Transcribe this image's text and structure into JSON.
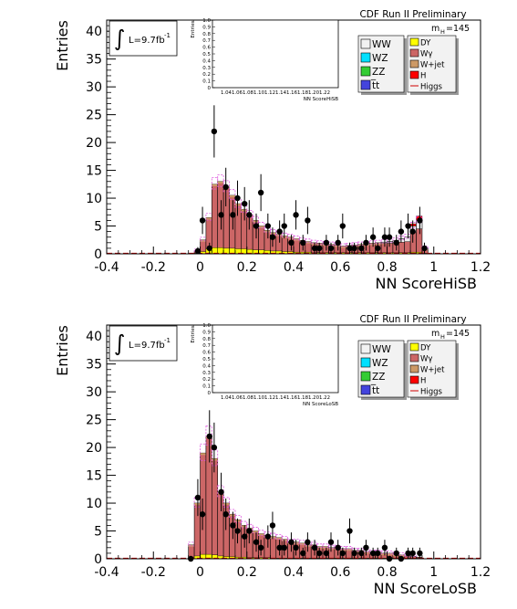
{
  "common": {
    "ylabel": "Entries",
    "lumi_integral": "∫",
    "lumi_text": "L=9.7fb",
    "lumi_sup": "-1",
    "cdf_label": "CDF Run II Preliminary",
    "mass_label": "m",
    "mass_sub": "H",
    "mass_value": "=145",
    "inset_ylabel": "Entries",
    "inset_yticks": [
      "0",
      "0.1",
      "0.2",
      "0.3",
      "0.4",
      "0.5",
      "0.6",
      "0.7",
      "0.8",
      "0.9",
      "1.0"
    ],
    "inset_xticks": "1.041.061.081.101.121.141.161.181.201.22",
    "legend_left": [
      "WW",
      "WZ",
      "ZZ",
      "t̅t"
    ],
    "legend_right": [
      "DY",
      "Wγ",
      "W+jet",
      "H",
      "Higgs"
    ],
    "xticks": [
      "-0.4",
      "-0.2",
      "0",
      "0.2",
      "0.4",
      "0.6",
      "0.8",
      "1",
      "1.2"
    ],
    "yticks": [
      "0",
      "5",
      "10",
      "15",
      "20",
      "25",
      "30",
      "35",
      "40"
    ],
    "colors": {
      "WW": "#f2f2f2",
      "WZ": "#00e0ff",
      "ZZ": "#33cc33",
      "tt": "#4444dd",
      "DY": "#ffff00",
      "Wg": "#cc6666",
      "Wjet": "#cc9966",
      "H": "#ff0000",
      "Higgs": "#ff66ff",
      "band": "#dd55dd",
      "axis_red": "#d00000"
    }
  },
  "chart_data": [
    {
      "type": "bar",
      "xlabel": "NN ScoreHiSB",
      "inset_xlabel": "NN ScoreHiSB",
      "xlim": [
        -0.4,
        1.2
      ],
      "ylim": [
        0,
        42
      ],
      "bin_edges": [
        -0.025,
        0,
        0.025,
        0.05,
        0.075,
        0.1,
        0.125,
        0.15,
        0.175,
        0.2,
        0.225,
        0.25,
        0.275,
        0.3,
        0.325,
        0.35,
        0.375,
        0.4,
        0.425,
        0.45,
        0.475,
        0.5,
        0.525,
        0.55,
        0.575,
        0.6,
        0.625,
        0.65,
        0.675,
        0.7,
        0.725,
        0.75,
        0.775,
        0.8,
        0.825,
        0.85,
        0.875,
        0.9,
        0.925,
        0.95,
        0.975
      ],
      "stack_total": [
        0.5,
        2.5,
        6.5,
        12.5,
        13,
        12,
        10.5,
        9,
        8,
        7,
        6,
        5,
        4.2,
        3.8,
        3.5,
        3.2,
        3,
        2.7,
        2.4,
        2.2,
        2,
        1.9,
        1.8,
        1.7,
        1.6,
        1.4,
        1.5,
        1.6,
        1.7,
        1.8,
        1.9,
        2,
        2.1,
        2.2,
        2.4,
        2.7,
        3,
        5,
        6,
        1
      ],
      "dy_part": [
        0.1,
        0.4,
        0.9,
        1.1,
        1.1,
        1,
        1,
        0.9,
        0.9,
        0.8,
        0.7,
        0.7,
        0.6,
        0.5,
        0.5,
        0.4,
        0.4,
        0.3,
        0.3,
        0.3,
        0.2,
        0.2,
        0.2,
        0.2,
        0.2,
        0.2,
        0.2,
        0.2,
        0.2,
        0.2,
        0.2,
        0.2,
        0.2,
        0.2,
        0.2,
        0.2,
        0.2,
        0.3,
        0.3,
        0.1
      ],
      "ww_part": [
        0,
        0,
        0,
        0,
        0,
        0,
        0,
        0,
        0,
        0,
        0,
        0,
        0,
        0,
        0,
        0,
        0,
        0,
        0,
        0,
        0,
        0,
        0,
        0,
        0,
        0,
        0,
        0,
        0,
        0,
        0,
        0,
        0.2,
        0.3,
        0.4,
        0.6,
        0.8,
        1.2,
        1.5,
        0.2
      ],
      "higgs_part": [
        0,
        0,
        0,
        0,
        0,
        0,
        0,
        0,
        0,
        0,
        0,
        0,
        0,
        0,
        0,
        0,
        0,
        0,
        0,
        0,
        0,
        0,
        0,
        0,
        0,
        0,
        0,
        0,
        0,
        0,
        0,
        0,
        0,
        0,
        0,
        0,
        0,
        0.4,
        0.8,
        0
      ],
      "data_points": [
        {
          "x": -0.01,
          "y": 0.5
        },
        {
          "x": 0.01,
          "y": 6
        },
        {
          "x": 0.04,
          "y": 1
        },
        {
          "x": 0.06,
          "y": 22
        },
        {
          "x": 0.09,
          "y": 7
        },
        {
          "x": 0.11,
          "y": 12
        },
        {
          "x": 0.14,
          "y": 7
        },
        {
          "x": 0.16,
          "y": 10
        },
        {
          "x": 0.19,
          "y": 9
        },
        {
          "x": 0.21,
          "y": 7
        },
        {
          "x": 0.24,
          "y": 5
        },
        {
          "x": 0.26,
          "y": 11
        },
        {
          "x": 0.29,
          "y": 5
        },
        {
          "x": 0.31,
          "y": 3
        },
        {
          "x": 0.34,
          "y": 4
        },
        {
          "x": 0.36,
          "y": 5
        },
        {
          "x": 0.39,
          "y": 2
        },
        {
          "x": 0.41,
          "y": 7
        },
        {
          "x": 0.44,
          "y": 2
        },
        {
          "x": 0.46,
          "y": 6
        },
        {
          "x": 0.49,
          "y": 1
        },
        {
          "x": 0.51,
          "y": 1
        },
        {
          "x": 0.54,
          "y": 2
        },
        {
          "x": 0.56,
          "y": 1
        },
        {
          "x": 0.59,
          "y": 2
        },
        {
          "x": 0.61,
          "y": 5
        },
        {
          "x": 0.64,
          "y": 1
        },
        {
          "x": 0.66,
          "y": 1
        },
        {
          "x": 0.69,
          "y": 1
        },
        {
          "x": 0.71,
          "y": 2
        },
        {
          "x": 0.74,
          "y": 3
        },
        {
          "x": 0.76,
          "y": 1
        },
        {
          "x": 0.79,
          "y": 3
        },
        {
          "x": 0.81,
          "y": 3
        },
        {
          "x": 0.84,
          "y": 2
        },
        {
          "x": 0.86,
          "y": 4
        },
        {
          "x": 0.89,
          "y": 5
        },
        {
          "x": 0.91,
          "y": 4
        },
        {
          "x": 0.94,
          "y": 6
        },
        {
          "x": 0.96,
          "y": 1
        }
      ]
    },
    {
      "type": "bar",
      "xlabel": "NN ScoreLoSB",
      "inset_xlabel": "NN ScoreLoSB",
      "xlim": [
        -0.4,
        1.2
      ],
      "ylim": [
        0,
        42
      ],
      "bin_edges": [
        -0.05,
        -0.025,
        0,
        0.025,
        0.05,
        0.075,
        0.1,
        0.125,
        0.15,
        0.175,
        0.2,
        0.225,
        0.25,
        0.275,
        0.3,
        0.325,
        0.35,
        0.375,
        0.4,
        0.425,
        0.45,
        0.475,
        0.5,
        0.525,
        0.55,
        0.575,
        0.6,
        0.625,
        0.65,
        0.675,
        0.7,
        0.725,
        0.75,
        0.775,
        0.8,
        0.825,
        0.85,
        0.875,
        0.9,
        0.925,
        0.95
      ],
      "stack_total": [
        2.5,
        10,
        19,
        22,
        18,
        12,
        10,
        8,
        7,
        6,
        5.5,
        5,
        4.5,
        4.2,
        4,
        3.8,
        3.5,
        3,
        3,
        2.8,
        2.5,
        2.5,
        2.2,
        2.2,
        2,
        2,
        1.8,
        1.8,
        1.5,
        1.5,
        1.3,
        1.2,
        1.2,
        1,
        1,
        0.8,
        0.7,
        0.5,
        0.4,
        0.3
      ],
      "dy_part": [
        0.2,
        0.5,
        0.8,
        0.8,
        0.7,
        0.5,
        0.4,
        0.4,
        0.3,
        0.3,
        0.2,
        0.2,
        0.2,
        0.2,
        0.1,
        0.1,
        0.1,
        0.1,
        0.1,
        0.1,
        0.1,
        0.1,
        0.1,
        0.1,
        0.1,
        0.1,
        0.1,
        0.1,
        0.1,
        0.1,
        0.1,
        0.1,
        0.1,
        0.1,
        0.1,
        0.1,
        0.1,
        0.1,
        0.1,
        0.1
      ],
      "ww_part": [
        0,
        0,
        0,
        0,
        0,
        0,
        0,
        0,
        0,
        0,
        0,
        0,
        0,
        0,
        0,
        0,
        0,
        0,
        0,
        0,
        0,
        0,
        0,
        0,
        0,
        0,
        0,
        0,
        0,
        0,
        0,
        0,
        0,
        0,
        0,
        0,
        0,
        0,
        0,
        0
      ],
      "higgs_part": [
        0,
        0,
        0,
        0,
        0,
        0,
        0,
        0,
        0,
        0,
        0,
        0,
        0,
        0,
        0,
        0,
        0,
        0,
        0,
        0,
        0,
        0,
        0,
        0,
        0,
        0,
        0,
        0,
        0,
        0,
        0,
        0,
        0,
        0,
        0,
        0,
        0,
        0,
        0,
        0
      ],
      "data_points": [
        {
          "x": -0.04,
          "y": 0
        },
        {
          "x": -0.01,
          "y": 11
        },
        {
          "x": 0.01,
          "y": 8
        },
        {
          "x": 0.04,
          "y": 22
        },
        {
          "x": 0.06,
          "y": 20
        },
        {
          "x": 0.09,
          "y": 12
        },
        {
          "x": 0.11,
          "y": 8
        },
        {
          "x": 0.14,
          "y": 6
        },
        {
          "x": 0.16,
          "y": 5
        },
        {
          "x": 0.19,
          "y": 4
        },
        {
          "x": 0.21,
          "y": 5
        },
        {
          "x": 0.24,
          "y": 3
        },
        {
          "x": 0.26,
          "y": 2
        },
        {
          "x": 0.29,
          "y": 4
        },
        {
          "x": 0.31,
          "y": 6
        },
        {
          "x": 0.34,
          "y": 2
        },
        {
          "x": 0.36,
          "y": 2
        },
        {
          "x": 0.39,
          "y": 3
        },
        {
          "x": 0.41,
          "y": 2
        },
        {
          "x": 0.44,
          "y": 1
        },
        {
          "x": 0.46,
          "y": 3
        },
        {
          "x": 0.49,
          "y": 2
        },
        {
          "x": 0.51,
          "y": 1
        },
        {
          "x": 0.54,
          "y": 1
        },
        {
          "x": 0.56,
          "y": 3
        },
        {
          "x": 0.59,
          "y": 2
        },
        {
          "x": 0.61,
          "y": 1
        },
        {
          "x": 0.64,
          "y": 5
        },
        {
          "x": 0.66,
          "y": 1
        },
        {
          "x": 0.69,
          "y": 1
        },
        {
          "x": 0.71,
          "y": 2
        },
        {
          "x": 0.74,
          "y": 1
        },
        {
          "x": 0.76,
          "y": 1
        },
        {
          "x": 0.79,
          "y": 2
        },
        {
          "x": 0.81,
          "y": 0
        },
        {
          "x": 0.84,
          "y": 1
        },
        {
          "x": 0.86,
          "y": 0
        },
        {
          "x": 0.89,
          "y": 1
        },
        {
          "x": 0.91,
          "y": 1
        },
        {
          "x": 0.94,
          "y": 1
        }
      ]
    }
  ]
}
